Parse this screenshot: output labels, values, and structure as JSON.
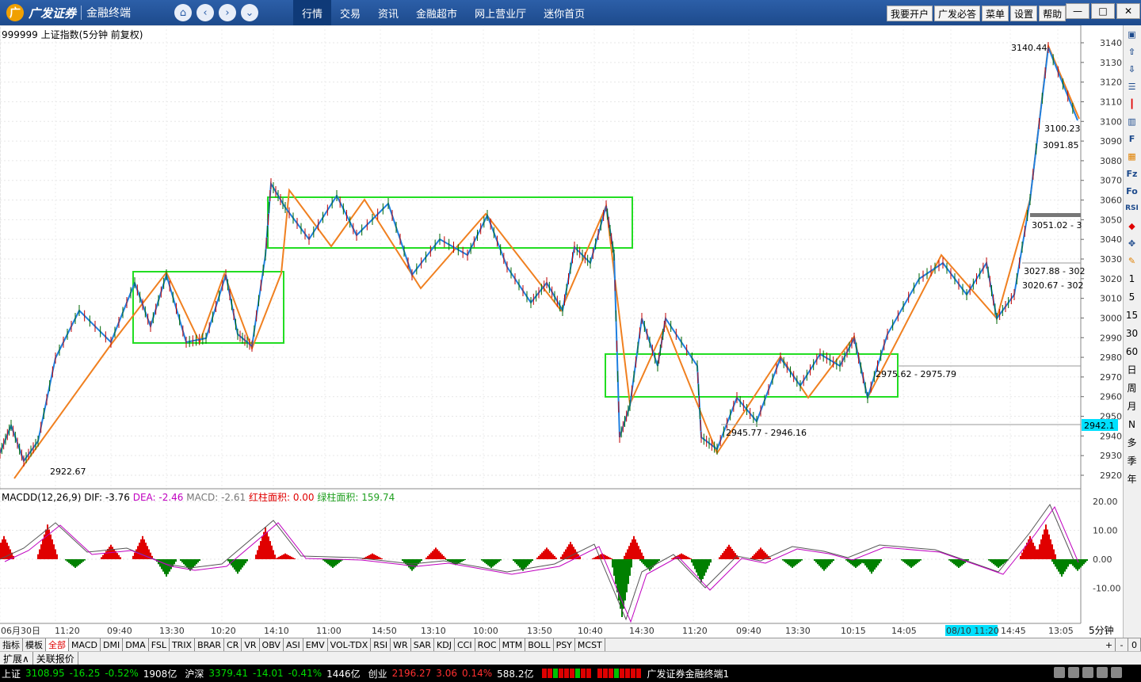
{
  "header": {
    "logo_mark": "广",
    "brand": "广发证券",
    "product": "金融终端",
    "nav_icons": [
      "home-icon",
      "back-icon",
      "forward-icon",
      "collapse-icon"
    ],
    "tabs": [
      {
        "label": "行情",
        "active": true
      },
      {
        "label": "交易",
        "active": false
      },
      {
        "label": "资讯",
        "active": false
      },
      {
        "label": "金融超市",
        "active": false
      },
      {
        "label": "网上营业厅",
        "active": false
      },
      {
        "label": "迷你首页",
        "active": false
      }
    ],
    "right_buttons": [
      "我要开户",
      "广发必答",
      "菜单",
      "设置",
      "帮助"
    ]
  },
  "chart": {
    "title": "999999 上证指数(5分钟 前复权)",
    "y_labels": [
      "3140",
      "3130",
      "3120",
      "3110",
      "3100",
      "3090",
      "3080",
      "3070",
      "3060",
      "3050",
      "3040",
      "3030",
      "3020",
      "3010",
      "3000",
      "2990",
      "2980",
      "2970",
      "2960",
      "2950",
      "2940",
      "2930",
      "2920"
    ],
    "annotations": {
      "low_left": "2922.67",
      "high_right": "3140.44",
      "r1": "3100.23",
      "r2": "3091.85",
      "r3": "3051.02 - 3",
      "r4": "3027.88 - 302",
      "r5": "3020.67 - 302",
      "mid": "2975.62 - 2975.79",
      "low_mid": "2945.77 - 2946.16",
      "current_price": "2942.1"
    },
    "x_labels": [
      "06月30日",
      "11:20",
      "09:40",
      "13:30",
      "10:20",
      "14:10",
      "11:00",
      "14:50",
      "13:10",
      "10:00",
      "13:50",
      "10:40",
      "14:30",
      "11:20",
      "09:40",
      "13:30",
      "10:15",
      "14:05",
      "08/10 11:20",
      "14:45",
      "13:05"
    ],
    "period_label": "5分钟"
  },
  "macd": {
    "name": "MACDD(12,26,9)",
    "dif": "DIF: -3.76",
    "dea": "DEA: -2.46",
    "macd": "MACD: -2.61",
    "red_area": "红柱面积: 0.00",
    "green_area": "绿柱面积: 159.74",
    "y_labels": [
      "20.00",
      "10.00",
      "0.00",
      "-10.00"
    ]
  },
  "right_toolbar": {
    "icons": [
      "lock-icon",
      "up-icon",
      "down-icon",
      "list-icon",
      "candle-icon",
      "bar-icon",
      "fib-icon",
      "calendar-icon",
      "fiz-icon",
      "fio-icon",
      "rsi-icon",
      "tag-icon",
      "move-icon",
      "pen-icon"
    ],
    "periods": [
      "1",
      "5",
      "15",
      "30",
      "60",
      "日",
      "周",
      "月",
      "N",
      "多",
      "季",
      "年"
    ]
  },
  "indicator_tabs": [
    "指标",
    "模板",
    "全部",
    "MACD",
    "DMI",
    "DMA",
    "FSL",
    "TRIX",
    "BRAR",
    "CR",
    "VR",
    "OBV",
    "ASI",
    "EMV",
    "VOL-TDX",
    "RSI",
    "WR",
    "SAR",
    "KDJ",
    "CCI",
    "ROC",
    "MTM",
    "BOLL",
    "PSY",
    "MCST"
  ],
  "indicator_active": "全部",
  "ext_tabs": [
    "扩展∧",
    "关联报价"
  ],
  "tab_controls": [
    "+",
    "-",
    "0"
  ],
  "statusbar": {
    "sh_name": "上证",
    "sh_price": "3108.95",
    "sh_chg": "-16.25",
    "sh_pct": "-0.52%",
    "sh_vol": "1908亿",
    "sz_name": "沪深",
    "sz_price": "3379.41",
    "sz_chg": "-14.01",
    "sz_pct": "-0.41%",
    "sz_vol": "1446亿",
    "cy_name": "创业",
    "cy_price": "2196.27",
    "cy_chg": "3.06",
    "cy_pct": "0.14%",
    "cy_vol": "588.2亿",
    "app_name": "广发证券金融终端1"
  },
  "colors": {
    "accent": "#1d4a8c",
    "up": "#e00000",
    "down": "#008000",
    "zigzag_blue": "#1e7fe0",
    "zigzag_orange": "#f08020",
    "box_green": "#22dd22",
    "current_price_bg": "#00e0ff"
  }
}
